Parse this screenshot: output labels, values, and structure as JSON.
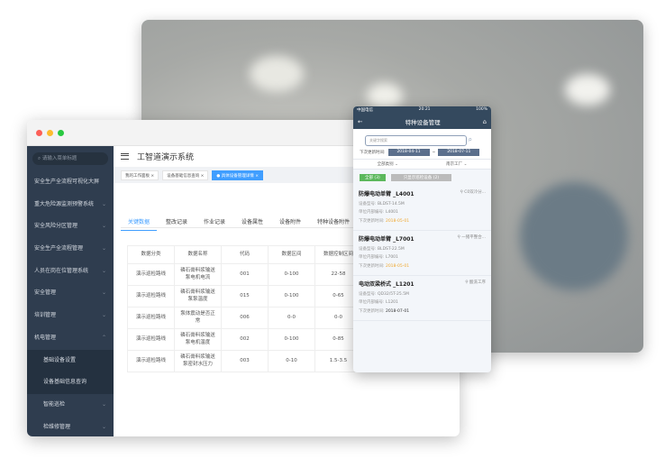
{
  "desktop": {
    "title": "工智道演示系统",
    "search_placeholder": "请输入菜单标题",
    "menu": [
      {
        "label": "安全生产全流程可视化大屏",
        "chev": ""
      },
      {
        "label": "重大危险源监测预警系统",
        "chev": "⌄"
      },
      {
        "label": "安全风险分区管理",
        "chev": "⌄"
      },
      {
        "label": "安全生产全流程管理",
        "chev": "⌄"
      },
      {
        "label": "人员在岗在位管理系统",
        "chev": "⌄"
      },
      {
        "label": "安全管理",
        "chev": "⌄"
      },
      {
        "label": "培训管理",
        "chev": "⌄"
      },
      {
        "label": "机电管理",
        "chev": "⌃"
      }
    ],
    "submenu": [
      "基础设备设置",
      "设备基础信息查询"
    ],
    "menu_after": [
      {
        "label": "智能巡检",
        "chev": "⌄"
      },
      {
        "label": "检维修管理",
        "chev": "⌄"
      }
    ],
    "tags": [
      "我的工作面板 ×",
      "设备基础信息查询 ×",
      "● 具体设备管理详情 ×"
    ],
    "tabs": [
      "关键数据",
      "整改记录",
      "作业记录",
      "设备属性",
      "设备附件",
      "特种设备附件"
    ],
    "table": {
      "headers": [
        "数据分类",
        "数据名称",
        "代码",
        "数据区间",
        "数据控制区间"
      ],
      "rows": [
        [
          "演示巡检路线",
          "磷石膏料浆输送泵电机电流",
          "001",
          "0-100",
          "22-58"
        ],
        [
          "演示巡检路线",
          "磷石膏料浆输送泵泵温度",
          "015",
          "0-100",
          "0-65"
        ],
        [
          "演示巡检路线",
          "泵体震动是否正常",
          "006",
          "0-0",
          "0-0"
        ],
        [
          "演示巡检路线",
          "磷石膏料浆输送泵电机温度",
          "002",
          "0-100",
          "0-85"
        ],
        [
          "演示巡检路线",
          "磷石膏料浆输送泵密封水压力",
          "003",
          "0-10",
          "1.5-3.5"
        ]
      ]
    }
  },
  "phone": {
    "status": {
      "carrier": "中国电信",
      "time": "20:21",
      "battery": "100%"
    },
    "title": "特种设备管理",
    "search_placeholder": "关键字搜索",
    "date_label": "下次更新时间:",
    "date_from": "2018-04-11",
    "date_sep": "~",
    "date_to": "2018-07-11",
    "filters": [
      "全部类别 ⌄",
      "南京工厂 ⌄"
    ],
    "btn_all": "全部 (3)",
    "btn_inspect": "只显示巡检设备 (2)",
    "cards": [
      {
        "name": "防爆电动单臂 _L4001",
        "loc": "C0双冷分...",
        "model": "BLDST-14.5M",
        "code": "L4001",
        "next": "2018-05-01",
        "overdue": true
      },
      {
        "name": "防爆电动单臂 _L7001",
        "loc": "一猪平整合...",
        "model": "BLDST-22.5M",
        "code": "L7001",
        "next": "2018-05-01",
        "overdue": true
      },
      {
        "name": "电动双梁桥式 _L1201",
        "loc": "酸洗工序",
        "model": "QD32/5T-25.5M",
        "code": "L1201",
        "next": "2018-07-01",
        "overdue": false
      }
    ],
    "labels": {
      "model": "设备型号:",
      "code": "单位内部编号:",
      "next": "下次更新时间:"
    }
  },
  "colors": {
    "accent": "#409eff",
    "sidebar": "#2f3d4f",
    "phone_header": "#34495e",
    "warn": "#f0a830",
    "green": "#5cb85c"
  }
}
